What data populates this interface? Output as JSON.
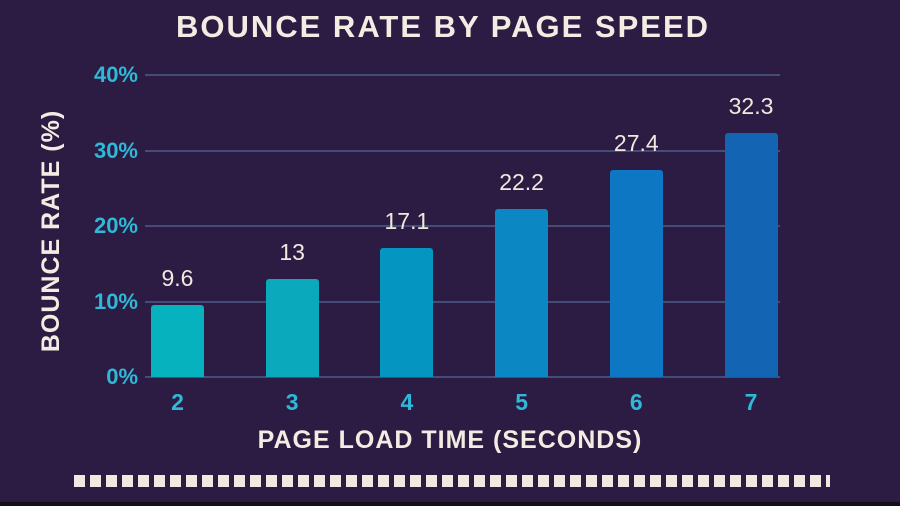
{
  "chart_data": {
    "type": "bar",
    "title": "BOUNCE RATE BY PAGE SPEED",
    "xlabel": "PAGE LOAD TIME (SECONDS)",
    "ylabel": "BOUNCE RATE (%)",
    "categories": [
      "2",
      "3",
      "4",
      "5",
      "6",
      "7"
    ],
    "values": [
      9.6,
      13,
      17.1,
      22.2,
      27.4,
      32.3
    ],
    "value_labels": [
      "9.6",
      "13",
      "17.1",
      "22.2",
      "27.4",
      "32.3"
    ],
    "y_ticks": [
      {
        "value": 0,
        "label": "0%"
      },
      {
        "value": 10,
        "label": "10%"
      },
      {
        "value": 20,
        "label": "20%"
      },
      {
        "value": 30,
        "label": "30%"
      },
      {
        "value": 40,
        "label": "40%"
      }
    ],
    "ylim": [
      0,
      40
    ],
    "grid": true,
    "legend": "none",
    "bar_colors": [
      "#05b2bd",
      "#0aa9bb",
      "#0495c0",
      "#0b88c4",
      "#0d77c4",
      "#1464b4"
    ]
  },
  "theme": {
    "background": "#2c1b42",
    "title_color": "#f2ece2",
    "axis_title_color": "#f2ece2",
    "tick_color": "#2fb8d8",
    "value_label_color": "#efe9df",
    "gridline_color": "rgba(92,128,168,0.5)",
    "dashed_line_color": "#efe9e2",
    "bottom_strip_color": "#131019"
  }
}
